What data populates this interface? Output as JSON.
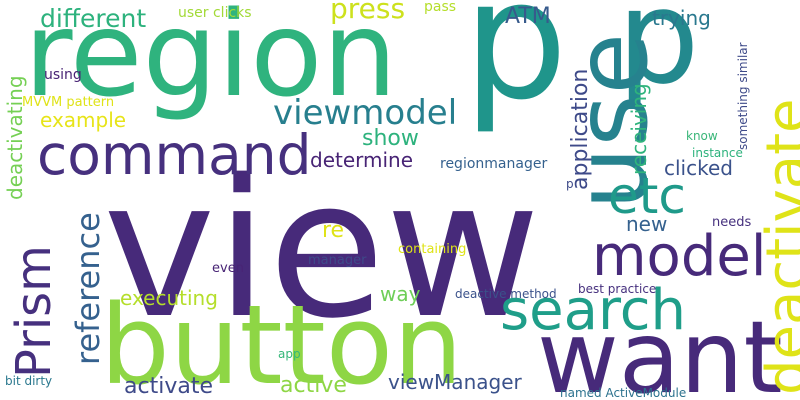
{
  "colors": {
    "indigo": "#472a7a",
    "teal": "#218f8d",
    "blue": "#35618e",
    "green": "#3ab679",
    "lime": "#8ad84a",
    "yellow": "#dfe318",
    "slate": "#3b528b"
  },
  "words": [
    {
      "text": "view",
      "color": "#472a7a"
    },
    {
      "text": "region",
      "color": "#2fb37e"
    },
    {
      "text": "p",
      "color": "#1f958b"
    },
    {
      "text": "p",
      "color": "#23898e"
    },
    {
      "text": "button",
      "color": "#8ed645"
    },
    {
      "text": "want",
      "color": "#472a7a"
    },
    {
      "text": "use",
      "color": "#26828e"
    },
    {
      "text": "deactivate",
      "color": "#dfe318"
    },
    {
      "text": "command",
      "color": "#46307e"
    },
    {
      "text": "search",
      "color": "#1f9e89"
    },
    {
      "text": "model",
      "color": "#472a7a"
    },
    {
      "text": "etc",
      "color": "#1f9a8a"
    },
    {
      "text": "Prism",
      "color": "#46307e"
    },
    {
      "text": "viewmodel",
      "color": "#277f8e"
    },
    {
      "text": "different",
      "color": "#2db27d"
    },
    {
      "text": "reference",
      "color": "#35618e"
    },
    {
      "text": "deactivating",
      "color": "#75d054"
    },
    {
      "text": "application",
      "color": "#3e4a89"
    },
    {
      "text": "ATM",
      "color": "#375a8c"
    },
    {
      "text": "press",
      "color": "#cde11d"
    },
    {
      "text": "trying",
      "color": "#29788e"
    },
    {
      "text": "receiving",
      "color": "#2fb47c"
    },
    {
      "text": "example",
      "color": "#e7e419"
    },
    {
      "text": "show",
      "color": "#2db27d"
    },
    {
      "text": "determine",
      "color": "#482475"
    },
    {
      "text": "clicked",
      "color": "#3b528b"
    },
    {
      "text": "new",
      "color": "#35618e"
    },
    {
      "text": "re",
      "color": "#dfe318"
    },
    {
      "text": "way",
      "color": "#6ece58"
    },
    {
      "text": "executing",
      "color": "#b5de2b"
    },
    {
      "text": "activate",
      "color": "#3e4a89"
    },
    {
      "text": "active",
      "color": "#8ed645"
    },
    {
      "text": "viewManager",
      "color": "#3b528b"
    },
    {
      "text": "user clicks",
      "color": "#a2da37"
    },
    {
      "text": "pass",
      "color": "#b5de2b"
    },
    {
      "text": "using",
      "color": "#482475"
    },
    {
      "text": "MVVM pattern",
      "color": "#dfe318"
    },
    {
      "text": "regionmanager",
      "color": "#35618e"
    },
    {
      "text": "something similar",
      "color": "#3e4a89"
    },
    {
      "text": "know",
      "color": "#3ab679"
    },
    {
      "text": "instance",
      "color": "#2db27d"
    },
    {
      "text": "p",
      "color": "#3e4a89"
    },
    {
      "text": "needs",
      "color": "#46307e"
    },
    {
      "text": "containing",
      "color": "#dfe318"
    },
    {
      "text": "even",
      "color": "#482475"
    },
    {
      "text": "manager",
      "color": "#3e4a89"
    },
    {
      "text": "deactive method",
      "color": "#3b528b"
    },
    {
      "text": "best practice",
      "color": "#46307e"
    },
    {
      "text": "app",
      "color": "#35b779"
    },
    {
      "text": "bit dirty",
      "color": "#2a788e"
    },
    {
      "text": "named ActiveModule",
      "color": "#2c728e"
    }
  ]
}
